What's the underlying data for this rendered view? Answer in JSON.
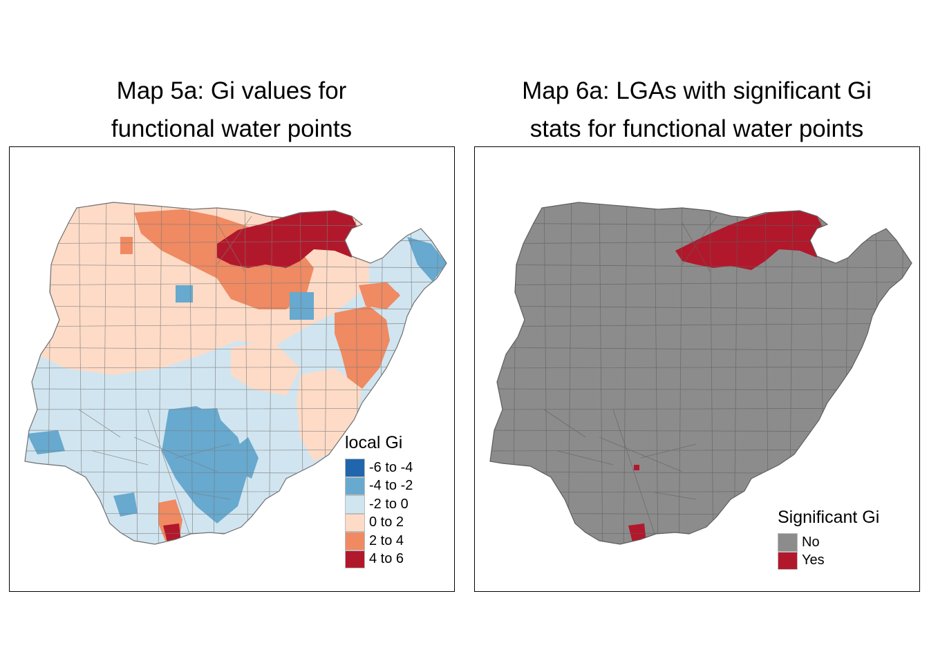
{
  "maps": [
    {
      "title_lines": [
        "Map 5a: Gi values for",
        "functional water points"
      ],
      "legend": {
        "title": "local Gi",
        "items": [
          {
            "label": "-6 to -4",
            "color": "#2166ac"
          },
          {
            "label": "-4 to -2",
            "color": "#67a9cf"
          },
          {
            "label": "-2 to 0",
            "color": "#d1e5f0"
          },
          {
            "label": "0 to 2",
            "color": "#fddbc7"
          },
          {
            "label": "2 to 4",
            "color": "#ef8a62"
          },
          {
            "label": "4 to 6",
            "color": "#b2182b"
          }
        ]
      }
    },
    {
      "title_lines": [
        "Map 6a: LGAs with significant Gi",
        "stats for functional water points"
      ],
      "legend": {
        "title": "Significant Gi",
        "items": [
          {
            "label": "No",
            "color": "#8c8c8c"
          },
          {
            "label": "Yes",
            "color": "#b2182b"
          }
        ]
      }
    }
  ],
  "colors": {
    "border": "#6e6e6e",
    "background": "#ffffff"
  }
}
